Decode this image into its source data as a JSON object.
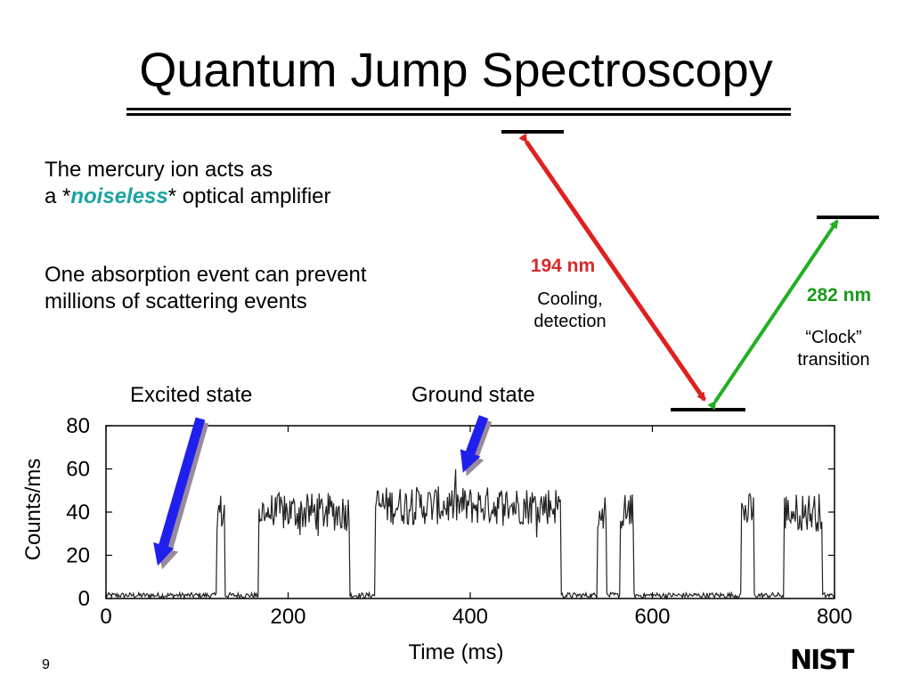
{
  "slide": {
    "title": "Quantum Jump Spectroscopy",
    "text1_line1": "The mercury ion acts as",
    "text1_line2_pre": "a *",
    "text1_noiseless": "noiseless",
    "text1_line2_post": "* optical amplifier",
    "text2_line1": "One absorption event can prevent",
    "text2_line2": "millions of scattering events",
    "page_number": "9",
    "logo_text": "NIST"
  },
  "levels": {
    "red_wavelength": "194 nm",
    "red_desc_line1": "Cooling,",
    "red_desc_line2": "detection",
    "green_wavelength": "282 nm",
    "green_desc_line1": "“Clock”",
    "green_desc_line2": "transition"
  },
  "annotations": {
    "excited": "Excited state",
    "ground": "Ground state"
  },
  "colors": {
    "red_arrow": "#e02020",
    "green_arrow": "#20b020",
    "blue_arrow": "#2020ee",
    "highlight": "#1aa3a3"
  },
  "chart_data": {
    "type": "line",
    "xlabel": "Time (ms)",
    "ylabel": "Counts/ms",
    "xlim": [
      0,
      800
    ],
    "ylim": [
      0,
      80
    ],
    "xticks": [
      0,
      200,
      400,
      600,
      800
    ],
    "yticks": [
      0,
      20,
      40,
      60,
      80
    ],
    "grid": false,
    "low_level": 1,
    "segments": [
      {
        "start": 0,
        "end": 122,
        "mean": 1
      },
      {
        "start": 122,
        "end": 131,
        "mean": 40
      },
      {
        "start": 131,
        "end": 168,
        "mean": 1
      },
      {
        "start": 168,
        "end": 268,
        "mean": 40
      },
      {
        "start": 268,
        "end": 296,
        "mean": 1
      },
      {
        "start": 296,
        "end": 500,
        "mean": 43
      },
      {
        "start": 500,
        "end": 540,
        "mean": 1
      },
      {
        "start": 540,
        "end": 550,
        "mean": 40
      },
      {
        "start": 550,
        "end": 565,
        "mean": 1
      },
      {
        "start": 565,
        "end": 580,
        "mean": 40
      },
      {
        "start": 580,
        "end": 698,
        "mean": 1
      },
      {
        "start": 698,
        "end": 712,
        "mean": 40
      },
      {
        "start": 712,
        "end": 745,
        "mean": 1
      },
      {
        "start": 745,
        "end": 787,
        "mean": 40
      },
      {
        "start": 787,
        "end": 800,
        "mean": 1
      }
    ]
  }
}
